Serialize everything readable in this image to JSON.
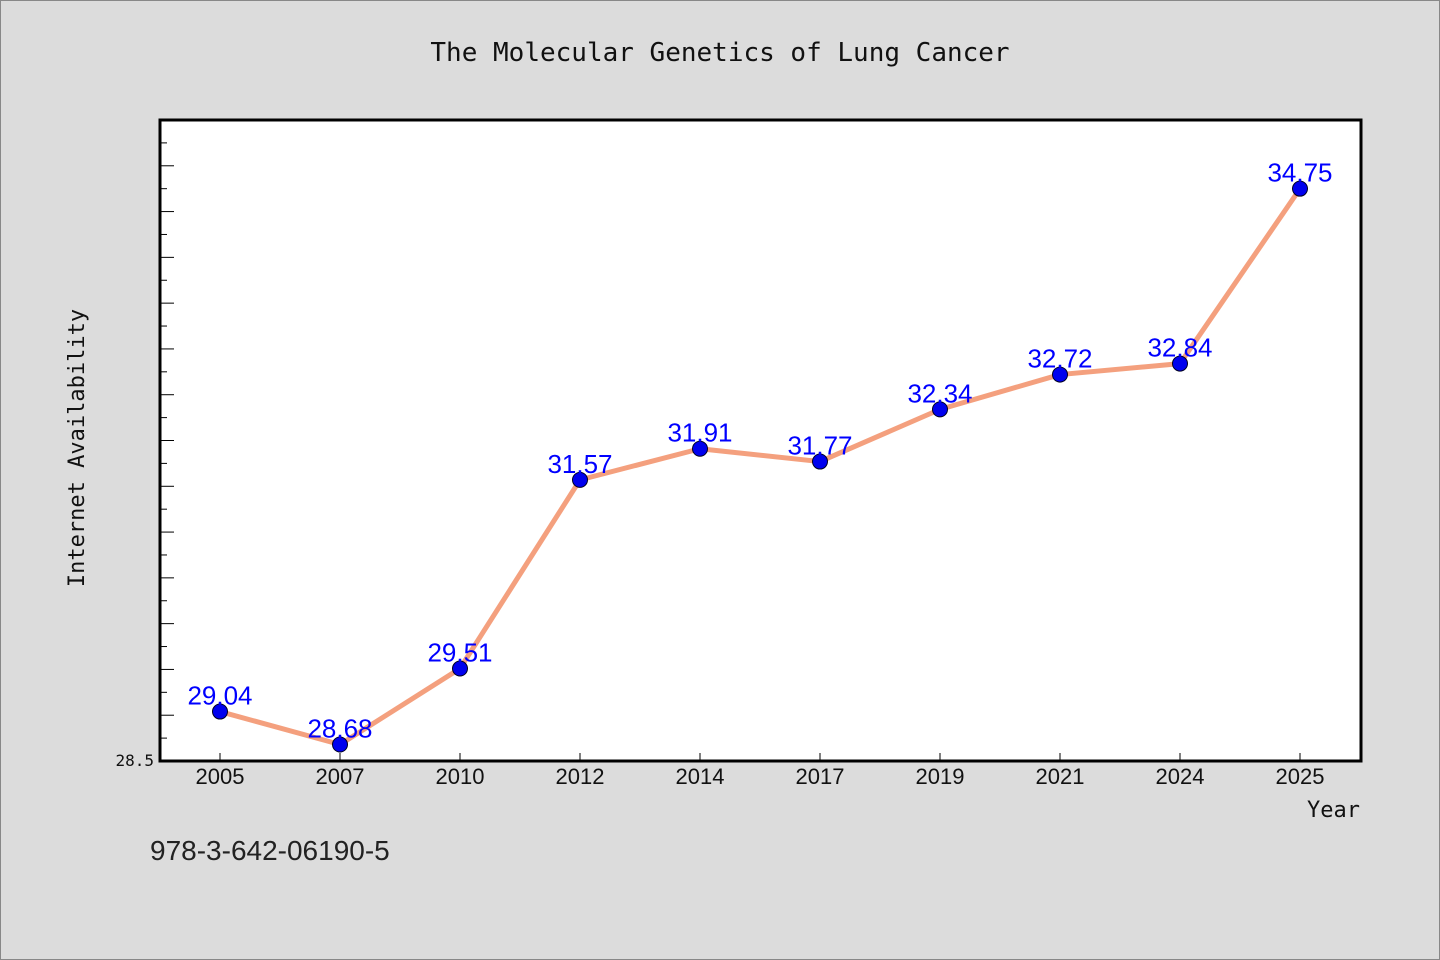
{
  "chart_data": {
    "type": "line",
    "title": "The Molecular Genetics of Lung Cancer",
    "xlabel": "Year",
    "ylabel": "Internet Availability",
    "categories": [
      "2005",
      "2007",
      "2010",
      "2012",
      "2014",
      "2017",
      "2019",
      "2021",
      "2024",
      "2025"
    ],
    "series": [
      {
        "values": [
          29.04,
          28.68,
          29.51,
          31.57,
          31.91,
          31.77,
          32.34,
          32.72,
          32.84,
          34.75
        ],
        "labels": [
          "29.04",
          "28.68",
          "29.51",
          "31.57",
          "31.91",
          "31.77",
          "32.34",
          "32.72",
          "32.84",
          "34.75"
        ]
      }
    ],
    "yticks": [
      "28.5"
    ],
    "ylim": [
      28.5,
      35.5
    ],
    "grid": false,
    "colors": {
      "line": "#f4a07e",
      "marker": "#0000ee",
      "label": "#0000ff",
      "background": "#dcdcdc",
      "plot_background": "#ffffff"
    }
  },
  "footer": {
    "isbn": "978-3-642-06190-5"
  }
}
